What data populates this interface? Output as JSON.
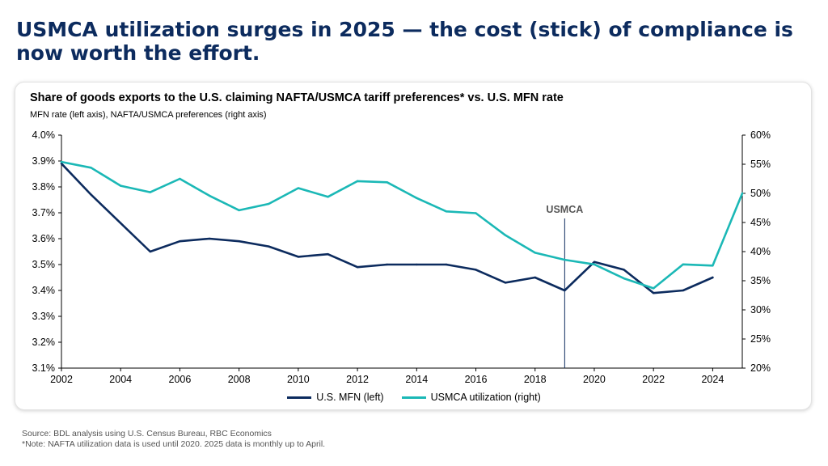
{
  "headline": "USMCA utilization surges in 2025 — the cost (stick) of compliance is now worth the effort.",
  "colors": {
    "mfn": "#0c2b5e",
    "usmca": "#1bb8b6",
    "headline": "#0c2b5e",
    "annotation_line": "#0c2b5e"
  },
  "chart_data": {
    "type": "line",
    "title": "Share of goods exports to the U.S. claiming NAFTA/USMCA tariff preferences* vs. U.S. MFN rate",
    "subtitle": "MFN rate (left axis), NAFTA/USMCA preferences (right axis)",
    "x_range": [
      2002,
      2025
    ],
    "x_ticks": [
      "2002",
      "2004",
      "2006",
      "2008",
      "2010",
      "2012",
      "2014",
      "2016",
      "2018",
      "2020",
      "2022",
      "2024"
    ],
    "y_left": {
      "range": [
        3.1,
        4.0
      ],
      "ticks": [
        "3.1%",
        "3.2%",
        "3.3%",
        "3.4%",
        "3.5%",
        "3.6%",
        "3.7%",
        "3.8%",
        "3.9%",
        "4.0%"
      ]
    },
    "y_right": {
      "range": [
        20,
        60
      ],
      "ticks": [
        "20%",
        "25%",
        "30%",
        "35%",
        "40%",
        "45%",
        "50%",
        "55%",
        "60%"
      ]
    },
    "grid": false,
    "legend_position": "bottom-center",
    "series": [
      {
        "name": "U.S. MFN (left)",
        "axis": "left",
        "x": [
          2002,
          2003,
          2004,
          2005,
          2006,
          2007,
          2008,
          2009,
          2010,
          2011,
          2012,
          2013,
          2014,
          2015,
          2016,
          2017,
          2018,
          2019,
          2020,
          2021,
          2022,
          2023,
          2024
        ],
        "values": [
          3.89,
          3.77,
          3.66,
          3.55,
          3.59,
          3.6,
          3.59,
          3.57,
          3.53,
          3.54,
          3.49,
          3.5,
          3.5,
          3.5,
          3.48,
          3.43,
          3.45,
          3.4,
          3.51,
          3.48,
          3.39,
          3.4,
          3.45
        ]
      },
      {
        "name": "USMCA utilization (right)",
        "axis": "right",
        "x": [
          2002,
          2003,
          2004,
          2005,
          2006,
          2007,
          2008,
          2009,
          2010,
          2011,
          2012,
          2013,
          2014,
          2015,
          2016,
          2017,
          2018,
          2019,
          2020,
          2021,
          2022,
          2023,
          2024,
          2025
        ],
        "values": [
          55.4,
          54.4,
          51.3,
          50.2,
          52.5,
          49.6,
          47.1,
          48.2,
          50.9,
          49.4,
          52.1,
          51.9,
          49.2,
          46.9,
          46.6,
          42.8,
          39.8,
          38.6,
          37.8,
          35.4,
          33.7,
          37.8,
          37.6,
          50.0
        ]
      }
    ],
    "annotations": [
      {
        "label": "USMCA",
        "x": 2019
      }
    ]
  },
  "footer": {
    "source": "Source: BDL analysis using U.S. Census Bureau, RBC Economics",
    "note": "*Note: NAFTA utilization data is used until 2020. 2025 data is monthly up to April."
  }
}
